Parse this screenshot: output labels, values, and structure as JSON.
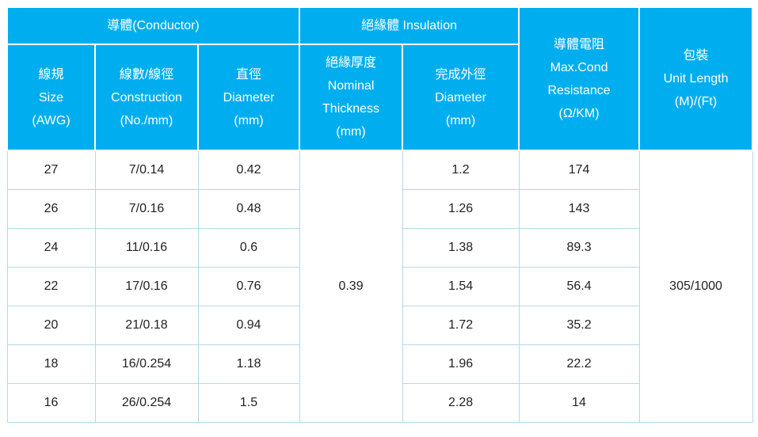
{
  "header": {
    "conductor_group": "導體(Conductor)",
    "insulation_group": "絕緣體 Insulation",
    "col_size": "線規\nSize\n(AWG)",
    "col_construction": "線數/線徑\nConstruction\n(No./mm)",
    "col_diameter": "直徑\nDiameter\n(mm)",
    "col_thickness": "絕緣厚度\nNominal\nThickness\n(mm)",
    "col_finished_od": "完成外徑\nDiameter\n(mm)",
    "col_resistance": "導體電阻\nMax.Cond\nResistance\n(Ω/KM)",
    "col_packing": "包裝\nUnit Length\n(M)/(Ft)"
  },
  "merged_cells": {
    "nominal_thickness_mm": "0.39",
    "unit_length": "305/1000"
  },
  "rows": [
    {
      "size": "27",
      "construction": "7/0.14",
      "diameter": "0.42",
      "finished_od": "1.2",
      "resistance": "174"
    },
    {
      "size": "26",
      "construction": "7/0.16",
      "diameter": "0.48",
      "finished_od": "1.26",
      "resistance": "143"
    },
    {
      "size": "24",
      "construction": "11/0.16",
      "diameter": "0.6",
      "finished_od": "1.38",
      "resistance": "89.3"
    },
    {
      "size": "22",
      "construction": "17/0.16",
      "diameter": "0.76",
      "finished_od": "1.54",
      "resistance": "56.4"
    },
    {
      "size": "20",
      "construction": "21/0.18",
      "diameter": "0.94",
      "finished_od": "1.72",
      "resistance": "35.2"
    },
    {
      "size": "18",
      "construction": "16/0.254",
      "diameter": "1.18",
      "finished_od": "1.96",
      "resistance": "22.2"
    },
    {
      "size": "16",
      "construction": "26/0.254",
      "diameter": "1.5",
      "finished_od": "2.28",
      "resistance": "14"
    }
  ],
  "colors": {
    "header_bg": "#00aeef",
    "header_text": "#ffffff",
    "row_border": "#b3d9e8",
    "body_text": "#222222"
  }
}
